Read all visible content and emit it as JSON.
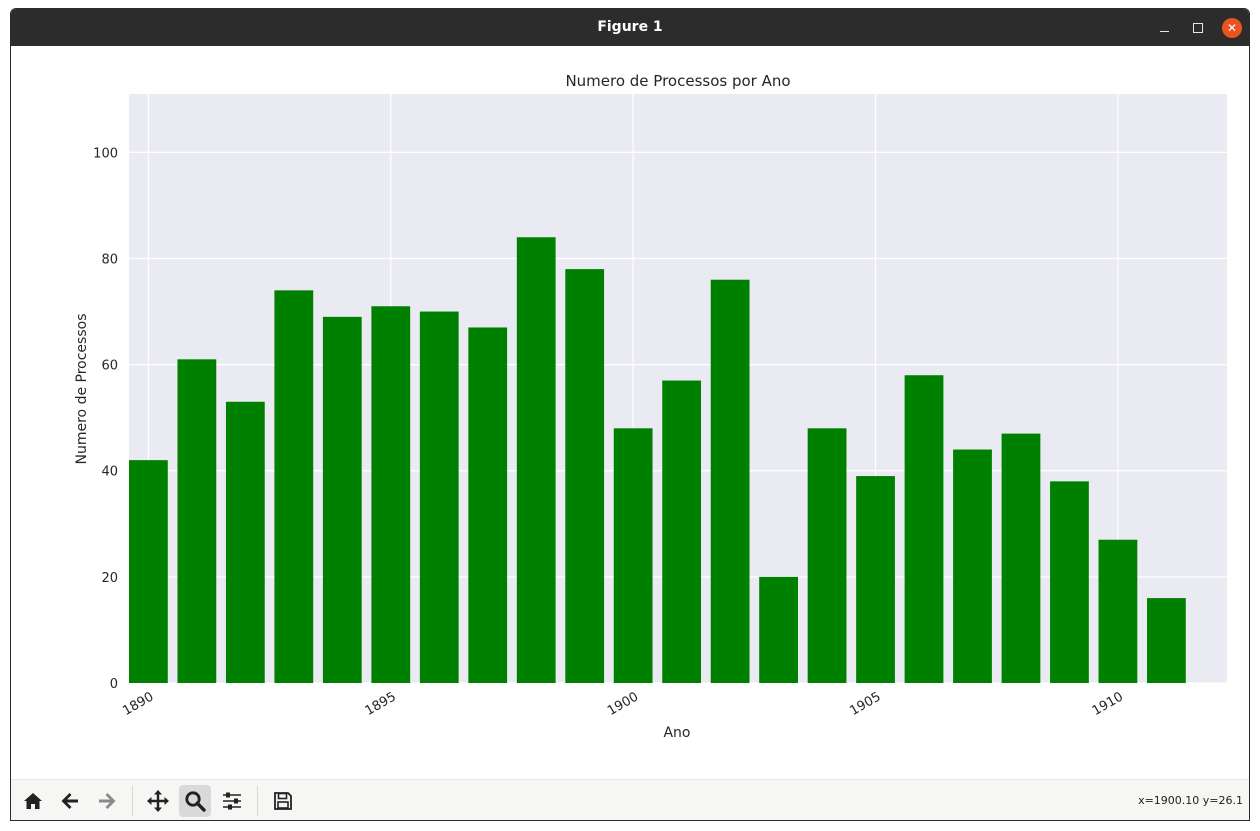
{
  "window": {
    "title": "Figure 1"
  },
  "toolbar": {
    "tools": [
      "home-icon",
      "back-arrow-icon",
      "forward-arrow-icon",
      "pan-icon",
      "zoom-icon",
      "configure-subplots-icon",
      "save-icon"
    ],
    "status": "x=1900.10 y=26.1"
  },
  "colors": {
    "bar": "#008000",
    "plot_bg": "#eaeaf2",
    "grid": "#ffffff",
    "titlebar": "#2c2c2c",
    "close": "#e95420"
  },
  "chart_data": {
    "type": "bar",
    "title": "Numero de Processos por Ano",
    "xlabel": "Ano",
    "ylabel": "Numero de Processos",
    "categories": [
      1890,
      1891,
      1892,
      1893,
      1894,
      1895,
      1896,
      1897,
      1898,
      1899,
      1900,
      1901,
      1902,
      1903,
      1904,
      1905,
      1906,
      1907,
      1908,
      1909,
      1910,
      1911
    ],
    "values": [
      42,
      61,
      53,
      74,
      69,
      71,
      70,
      67,
      84,
      78,
      48,
      57,
      76,
      20,
      48,
      39,
      58,
      44,
      47,
      38,
      27,
      16
    ],
    "xticks": [
      "1890",
      "1895",
      "1900",
      "1905",
      "1910"
    ],
    "yticks": [
      "0",
      "20",
      "40",
      "60",
      "80",
      "100"
    ],
    "xlim": [
      1889.6,
      1912.25
    ],
    "ylim": [
      0,
      111
    ],
    "grid": true,
    "legend": "none"
  }
}
